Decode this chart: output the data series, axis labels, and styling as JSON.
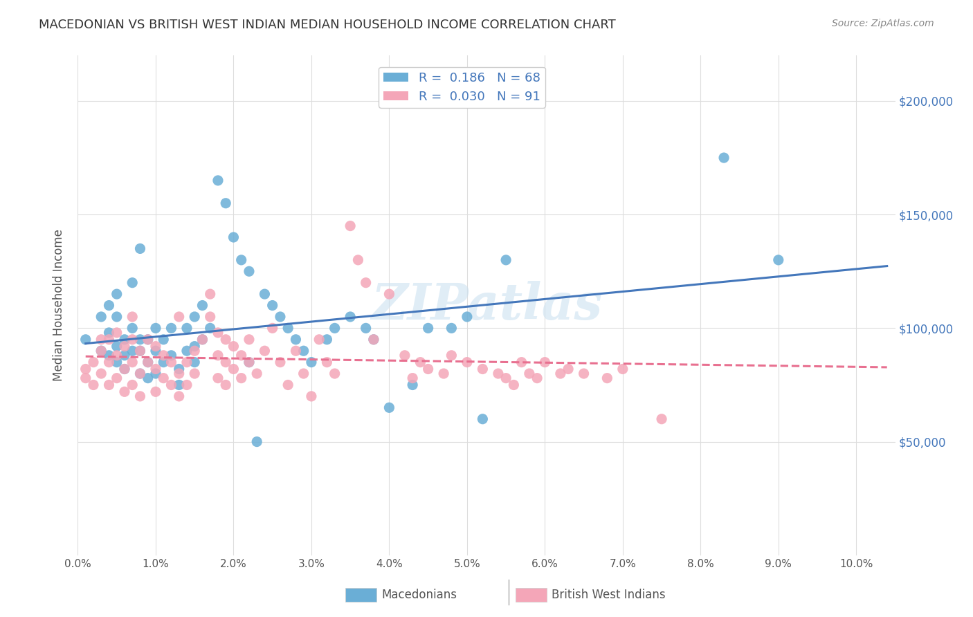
{
  "title": "MACEDONIAN VS BRITISH WEST INDIAN MEDIAN HOUSEHOLD INCOME CORRELATION CHART",
  "source": "Source: ZipAtlas.com",
  "ylabel": "Median Household Income",
  "watermark": "ZIPatlas",
  "legend_macedonians": "Macedonians",
  "legend_bwi": "British West Indians",
  "macedonian_R": "0.186",
  "macedonian_N": "68",
  "bwi_R": "0.030",
  "bwi_N": "91",
  "blue_color": "#6aaed6",
  "pink_color": "#f4a6b8",
  "blue_line_color": "#4477bb",
  "pink_line_color": "#e87090",
  "ytick_labels": [
    "$50,000",
    "$100,000",
    "$150,000",
    "$200,000"
  ],
  "ytick_values": [
    50000,
    100000,
    150000,
    200000
  ],
  "ylim": [
    0,
    220000
  ],
  "xlim": [
    0.0,
    0.105
  ],
  "background_color": "#ffffff",
  "grid_color": "#dddddd",
  "macedonian_x": [
    0.001,
    0.003,
    0.003,
    0.004,
    0.004,
    0.004,
    0.005,
    0.005,
    0.005,
    0.005,
    0.006,
    0.006,
    0.006,
    0.007,
    0.007,
    0.007,
    0.008,
    0.008,
    0.008,
    0.008,
    0.009,
    0.009,
    0.009,
    0.01,
    0.01,
    0.01,
    0.011,
    0.011,
    0.012,
    0.012,
    0.013,
    0.013,
    0.014,
    0.014,
    0.015,
    0.015,
    0.015,
    0.016,
    0.016,
    0.017,
    0.018,
    0.019,
    0.02,
    0.021,
    0.022,
    0.022,
    0.023,
    0.024,
    0.025,
    0.026,
    0.027,
    0.028,
    0.029,
    0.03,
    0.032,
    0.033,
    0.035,
    0.037,
    0.038,
    0.04,
    0.043,
    0.045,
    0.048,
    0.05,
    0.052,
    0.055,
    0.083,
    0.09
  ],
  "macedonian_y": [
    95000,
    90000,
    105000,
    88000,
    98000,
    110000,
    85000,
    92000,
    105000,
    115000,
    82000,
    88000,
    95000,
    90000,
    100000,
    120000,
    80000,
    90000,
    95000,
    135000,
    78000,
    85000,
    95000,
    80000,
    90000,
    100000,
    85000,
    95000,
    88000,
    100000,
    75000,
    82000,
    90000,
    100000,
    85000,
    92000,
    105000,
    95000,
    110000,
    100000,
    165000,
    155000,
    140000,
    130000,
    125000,
    85000,
    50000,
    115000,
    110000,
    105000,
    100000,
    95000,
    90000,
    85000,
    95000,
    100000,
    105000,
    100000,
    95000,
    65000,
    75000,
    100000,
    100000,
    105000,
    60000,
    130000,
    175000,
    130000
  ],
  "bwi_x": [
    0.001,
    0.001,
    0.002,
    0.002,
    0.003,
    0.003,
    0.003,
    0.004,
    0.004,
    0.004,
    0.005,
    0.005,
    0.005,
    0.006,
    0.006,
    0.006,
    0.007,
    0.007,
    0.007,
    0.007,
    0.008,
    0.008,
    0.008,
    0.009,
    0.009,
    0.01,
    0.01,
    0.01,
    0.011,
    0.011,
    0.012,
    0.012,
    0.013,
    0.013,
    0.013,
    0.014,
    0.014,
    0.015,
    0.015,
    0.016,
    0.017,
    0.017,
    0.018,
    0.018,
    0.018,
    0.019,
    0.019,
    0.019,
    0.02,
    0.02,
    0.021,
    0.021,
    0.022,
    0.022,
    0.023,
    0.024,
    0.025,
    0.026,
    0.027,
    0.028,
    0.029,
    0.03,
    0.031,
    0.032,
    0.033,
    0.035,
    0.036,
    0.037,
    0.038,
    0.04,
    0.042,
    0.043,
    0.044,
    0.045,
    0.047,
    0.048,
    0.05,
    0.052,
    0.054,
    0.055,
    0.056,
    0.057,
    0.058,
    0.059,
    0.06,
    0.062,
    0.063,
    0.065,
    0.068,
    0.07,
    0.075
  ],
  "bwi_y": [
    82000,
    78000,
    75000,
    85000,
    90000,
    80000,
    95000,
    75000,
    85000,
    95000,
    78000,
    88000,
    98000,
    72000,
    82000,
    92000,
    75000,
    85000,
    95000,
    105000,
    70000,
    80000,
    90000,
    85000,
    95000,
    72000,
    82000,
    92000,
    78000,
    88000,
    75000,
    85000,
    70000,
    80000,
    105000,
    75000,
    85000,
    80000,
    90000,
    95000,
    105000,
    115000,
    78000,
    88000,
    98000,
    75000,
    85000,
    95000,
    82000,
    92000,
    78000,
    88000,
    85000,
    95000,
    80000,
    90000,
    100000,
    85000,
    75000,
    90000,
    80000,
    70000,
    95000,
    85000,
    80000,
    145000,
    130000,
    120000,
    95000,
    115000,
    88000,
    78000,
    85000,
    82000,
    80000,
    88000,
    85000,
    82000,
    80000,
    78000,
    75000,
    85000,
    80000,
    78000,
    85000,
    80000,
    82000,
    80000,
    78000,
    82000,
    60000
  ]
}
